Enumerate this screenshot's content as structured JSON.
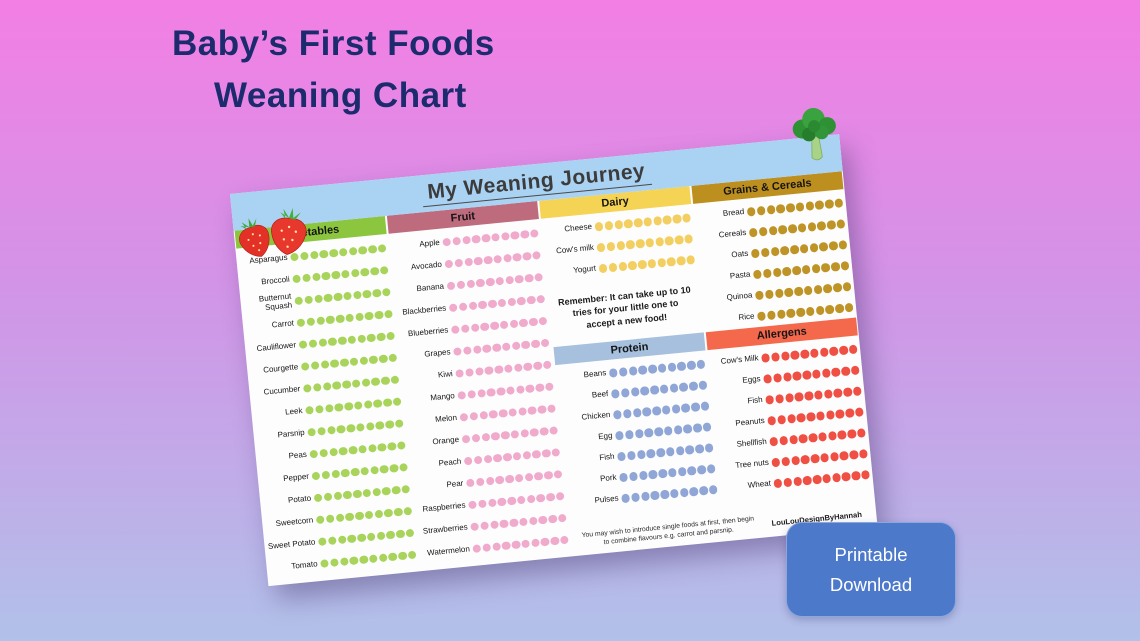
{
  "theme": {
    "background_top": "#f37fe4",
    "background_middle": "#d294e7",
    "background_bottom": "#b1c1e9",
    "title_color": "#1b2b6d",
    "banner_bg": "#a9d2f3",
    "page_bg": "#fdfdfe",
    "button_bg": "#4d79ca",
    "button_text": "#ffffff"
  },
  "header": {
    "title_line1": "Baby’s First Foods",
    "title_line2": "Weaning Chart"
  },
  "download": {
    "line1": "Printable",
    "line2": "Download"
  },
  "chart": {
    "banner": "My Weaning Journey",
    "banner_icons": [
      "strawberries",
      "broccoli"
    ],
    "note": "Remember: It can take up to 10 tries for your little one to accept a new food!",
    "footer": "You may wish to introduce single foods at first, then begin to combine flavours e.g. carrot and parsnip.",
    "credit": "LouLouDesignByHannah",
    "tries_per_food": 10,
    "categories": [
      {
        "id": "vegetables",
        "label": "Vegetables",
        "header_color": "#8cc63e",
        "dot_color": "#a9d45c",
        "items": [
          "Asparagus",
          "Broccoli",
          "Butternut Squash",
          "Carrot",
          "Cauliflower",
          "Courgette",
          "Cucumber",
          "Leek",
          "Parsnip",
          "Peas",
          "Pepper",
          "Potato",
          "Sweetcorn",
          "Sweet Potato",
          "Tomato"
        ]
      },
      {
        "id": "fruit",
        "label": "Fruit",
        "header_color": "#bd6b7d",
        "dot_color": "#f0aacb",
        "items": [
          "Apple",
          "Avocado",
          "Banana",
          "Blackberries",
          "Blueberries",
          "Grapes",
          "Kiwi",
          "Mango",
          "Melon",
          "Orange",
          "Peach",
          "Pear",
          "Raspberries",
          "Strawberries",
          "Watermelon"
        ]
      },
      {
        "id": "dairy",
        "label": "Dairy",
        "header_color": "#f5d355",
        "dot_color": "#f3cf62",
        "items": [
          "Cheese",
          "Cow's milk",
          "Yogurt"
        ]
      },
      {
        "id": "grains",
        "label": "Grains & Cereals",
        "header_color": "#bd8f1f",
        "dot_color": "#bf9427",
        "items": [
          "Bread",
          "Cereals",
          "Oats",
          "Pasta",
          "Quinoa",
          "Rice"
        ]
      },
      {
        "id": "protein",
        "label": "Protein",
        "header_color": "#a6c0dd",
        "dot_color": "#8fa6d6",
        "items": [
          "Beans",
          "Beef",
          "Chicken",
          "Egg",
          "Fish",
          "Pork",
          "Pulses"
        ]
      },
      {
        "id": "allergens",
        "label": "Allergens",
        "header_color": "#f4694b",
        "dot_color": "#f05043",
        "items": [
          "Cow's Milk",
          "Eggs",
          "Fish",
          "Peanuts",
          "Shellfish",
          "Tree nuts",
          "Wheat"
        ]
      }
    ]
  }
}
